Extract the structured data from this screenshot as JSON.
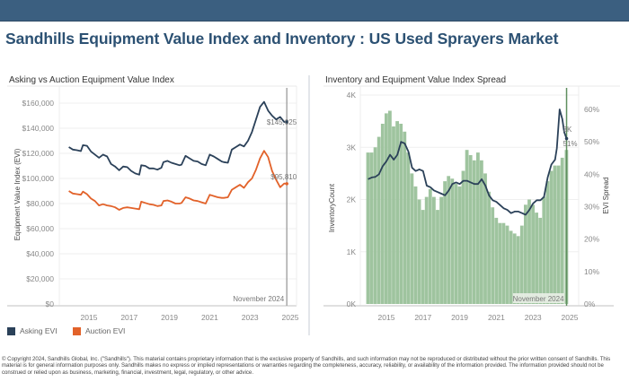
{
  "header": {
    "title": "Sandhills Equipment Value Index and Inventory : US Used Sprayers Market"
  },
  "legend": {
    "items": [
      {
        "label": "Asking EVI",
        "color": "#2b4159"
      },
      {
        "label": "Auction EVI",
        "color": "#e2622a"
      }
    ]
  },
  "footer": {
    "text": "© Copyright 2024, Sandhills Global, Inc. (\"Sandhills\"). This material contains proprietary information that is the exclusive property of Sandhills, and such information may not be reproduced or distributed without the prior written consent of Sandhills. This material is for general information purposes only. Sandhills makes no express or implied representations or warranties regarding the completeness, accuracy, reliability, or availability of the information provided. The information provided should not be construed or relied upon as business, marketing, financial, investment, legal, regulatory, or other advice."
  },
  "chart_data": [
    {
      "type": "line",
      "title": "Asking vs Auction Equipment Value Index",
      "xlabel": "",
      "ylabel": "Equipment Value Index (EVI)",
      "ylim": [
        0,
        170000
      ],
      "xlim": [
        2013.6,
        2025.3
      ],
      "yticks": [
        0,
        20000,
        40000,
        60000,
        80000,
        100000,
        120000,
        140000,
        160000
      ],
      "ytick_labels": [
        "$0",
        "$20,000",
        "$40,000",
        "$60,000",
        "$80,000",
        "$100,000",
        "$120,000",
        "$140,000",
        "$160,000"
      ],
      "xticks": [
        2015,
        2017,
        2019,
        2021,
        2023,
        2025
      ],
      "xtick_labels": [
        "2015",
        "2017",
        "2019",
        "2021",
        "2023",
        "2025"
      ],
      "grid": true,
      "legend": "bottom-left",
      "reference_line": {
        "x": 2024.83,
        "label": "November 2024"
      },
      "series": [
        {
          "name": "Asking EVI",
          "color": "#2b4159",
          "end_label": "$145,025",
          "x": [
            2014.0,
            2014.2,
            2014.4,
            2014.6,
            2014.7,
            2014.9,
            2015.1,
            2015.3,
            2015.5,
            2015.7,
            2015.9,
            2016.1,
            2016.3,
            2016.5,
            2016.7,
            2016.9,
            2017.1,
            2017.3,
            2017.5,
            2017.6,
            2017.8,
            2018.0,
            2018.2,
            2018.4,
            2018.6,
            2018.7,
            2018.9,
            2019.1,
            2019.3,
            2019.5,
            2019.6,
            2019.8,
            2020.0,
            2020.2,
            2020.4,
            2020.6,
            2020.8,
            2021.0,
            2021.2,
            2021.4,
            2021.6,
            2021.7,
            2021.9,
            2022.1,
            2022.3,
            2022.5,
            2022.7,
            2022.9,
            2023.1,
            2023.3,
            2023.5,
            2023.7,
            2023.9,
            2024.1,
            2024.3,
            2024.5,
            2024.7,
            2024.83
          ],
          "values": [
            125000,
            123000,
            122500,
            121800,
            126500,
            126000,
            121500,
            119000,
            116500,
            119000,
            117500,
            111500,
            109500,
            106500,
            109500,
            109000,
            106000,
            104000,
            103000,
            110500,
            110000,
            108000,
            108000,
            107000,
            108500,
            113000,
            114000,
            112500,
            111500,
            110500,
            111000,
            118000,
            116000,
            114000,
            113500,
            111500,
            110500,
            119000,
            117500,
            115500,
            113500,
            113000,
            112500,
            123000,
            125000,
            127000,
            125500,
            130000,
            137000,
            147000,
            157000,
            161000,
            154000,
            150000,
            147000,
            149000,
            145000,
            145025
          ]
        },
        {
          "name": "Auction EVI",
          "color": "#e2622a",
          "end_label": "$95,810",
          "x": [
            2014.0,
            2014.2,
            2014.4,
            2014.6,
            2014.7,
            2014.9,
            2015.1,
            2015.3,
            2015.5,
            2015.7,
            2015.9,
            2016.1,
            2016.3,
            2016.5,
            2016.7,
            2016.9,
            2017.1,
            2017.3,
            2017.5,
            2017.6,
            2017.8,
            2018.0,
            2018.2,
            2018.4,
            2018.6,
            2018.7,
            2018.9,
            2019.1,
            2019.3,
            2019.5,
            2019.6,
            2019.8,
            2020.0,
            2020.2,
            2020.4,
            2020.6,
            2020.8,
            2021.0,
            2021.2,
            2021.4,
            2021.6,
            2021.7,
            2021.9,
            2022.1,
            2022.3,
            2022.5,
            2022.7,
            2022.9,
            2023.1,
            2023.3,
            2023.5,
            2023.7,
            2023.9,
            2024.1,
            2024.3,
            2024.5,
            2024.7,
            2024.83
          ],
          "values": [
            90000,
            88000,
            87500,
            87000,
            89500,
            87500,
            84000,
            82000,
            78500,
            79500,
            78500,
            78000,
            77000,
            75000,
            76500,
            77000,
            76500,
            76000,
            75500,
            81500,
            80500,
            79500,
            79000,
            78000,
            78500,
            82000,
            82500,
            81500,
            80000,
            80000,
            80500,
            85000,
            84000,
            82500,
            82000,
            81000,
            80000,
            87000,
            86000,
            85000,
            84500,
            84500,
            85000,
            91000,
            93000,
            95000,
            92500,
            97000,
            100000,
            107000,
            116000,
            122000,
            117000,
            106000,
            99000,
            93000,
            96000,
            95810
          ]
        }
      ]
    },
    {
      "type": "bar",
      "title": "Inventory and Equipment Value Index Spread",
      "xlabel": "",
      "ylabel": "InventoryCount",
      "y2label": "EVI Spread",
      "ylim": [
        0,
        4000
      ],
      "y2lim": [
        0,
        0.65
      ],
      "xlim": [
        2013.1,
        2025.3
      ],
      "yticks": [
        0,
        1000,
        2000,
        3000,
        4000
      ],
      "ytick_labels": [
        "0K",
        "1K",
        "2K",
        "3K",
        "4K"
      ],
      "y2ticks": [
        0,
        0.1,
        0.2,
        0.3,
        0.4,
        0.5,
        0.6
      ],
      "y2tick_labels": [
        "0%",
        "10%",
        "20%",
        "30%",
        "40%",
        "50%",
        "60%"
      ],
      "xticks": [
        2015,
        2017,
        2019,
        2021,
        2023,
        2025
      ],
      "xtick_labels": [
        "2015",
        "2017",
        "2019",
        "2021",
        "2023",
        "2025"
      ],
      "grid": true,
      "reference_line": {
        "x": 2024.83,
        "label": "November 2024"
      },
      "end_labels": {
        "inventory": "3K",
        "spread": "51%"
      },
      "series": [
        {
          "name": "InventoryCount",
          "type": "bar",
          "color": "#9fc49f",
          "x": [
            2014.0,
            2014.2,
            2014.4,
            2014.6,
            2014.8,
            2015.0,
            2015.2,
            2015.4,
            2015.6,
            2015.8,
            2016.0,
            2016.2,
            2016.4,
            2016.6,
            2016.8,
            2017.0,
            2017.2,
            2017.4,
            2017.6,
            2017.8,
            2018.0,
            2018.2,
            2018.4,
            2018.6,
            2018.8,
            2019.0,
            2019.2,
            2019.4,
            2019.6,
            2019.8,
            2020.0,
            2020.2,
            2020.4,
            2020.6,
            2020.8,
            2021.0,
            2021.2,
            2021.4,
            2021.6,
            2021.8,
            2022.0,
            2022.2,
            2022.4,
            2022.6,
            2022.8,
            2023.0,
            2023.2,
            2023.4,
            2023.6,
            2023.8,
            2024.0,
            2024.2,
            2024.4,
            2024.6,
            2024.83
          ],
          "values": [
            2900,
            2900,
            3000,
            3200,
            3450,
            3650,
            3700,
            3400,
            3500,
            3450,
            3300,
            2900,
            2500,
            2250,
            2000,
            1800,
            2050,
            2200,
            2050,
            1800,
            2050,
            2350,
            2450,
            2400,
            2300,
            2250,
            2550,
            2950,
            2850,
            2750,
            2900,
            2750,
            2500,
            2150,
            1850,
            1650,
            1550,
            1550,
            1500,
            1400,
            1350,
            1300,
            1500,
            1900,
            2000,
            1900,
            1750,
            1650,
            2050,
            2350,
            2550,
            2650,
            2650,
            2800,
            2950
          ]
        },
        {
          "name": "EVI Spread",
          "type": "line",
          "color": "#2b4159",
          "x": [
            2014.0,
            2014.2,
            2014.4,
            2014.6,
            2014.8,
            2015.0,
            2015.2,
            2015.4,
            2015.6,
            2015.8,
            2016.0,
            2016.2,
            2016.4,
            2016.6,
            2016.8,
            2017.0,
            2017.2,
            2017.4,
            2017.6,
            2017.8,
            2018.0,
            2018.2,
            2018.4,
            2018.6,
            2018.8,
            2019.0,
            2019.2,
            2019.4,
            2019.6,
            2019.8,
            2020.0,
            2020.2,
            2020.4,
            2020.6,
            2020.8,
            2021.0,
            2021.2,
            2021.4,
            2021.6,
            2021.8,
            2022.0,
            2022.2,
            2022.4,
            2022.6,
            2022.8,
            2023.0,
            2023.2,
            2023.4,
            2023.6,
            2023.8,
            2024.0,
            2024.2,
            2024.3,
            2024.45,
            2024.6,
            2024.7,
            2024.83
          ],
          "values": [
            0.385,
            0.39,
            0.392,
            0.4,
            0.425,
            0.44,
            0.46,
            0.445,
            0.46,
            0.5,
            0.495,
            0.47,
            0.42,
            0.41,
            0.415,
            0.41,
            0.365,
            0.36,
            0.35,
            0.345,
            0.34,
            0.335,
            0.35,
            0.37,
            0.375,
            0.37,
            0.38,
            0.38,
            0.375,
            0.37,
            0.37,
            0.385,
            0.365,
            0.335,
            0.32,
            0.315,
            0.305,
            0.295,
            0.29,
            0.28,
            0.285,
            0.285,
            0.28,
            0.275,
            0.29,
            0.31,
            0.32,
            0.32,
            0.33,
            0.39,
            0.43,
            0.445,
            0.48,
            0.6,
            0.57,
            0.53,
            0.51
          ]
        }
      ]
    }
  ]
}
